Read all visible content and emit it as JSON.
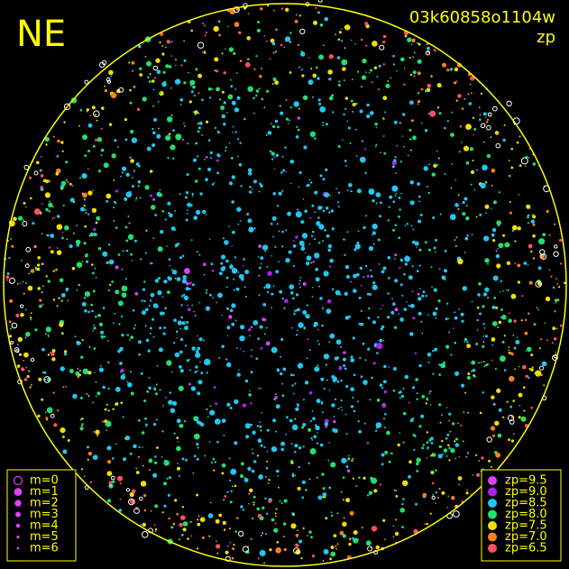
{
  "title": "NE",
  "frame_id": "03k60858o1104w",
  "color_label": "zp",
  "magnitude_legend": [
    {
      "label": "m=0"
    },
    {
      "label": "m=1"
    },
    {
      "label": "m=2"
    },
    {
      "label": "m=3"
    },
    {
      "label": "m=4"
    },
    {
      "label": "m=5"
    },
    {
      "label": "m=6"
    }
  ],
  "zp_legend": [
    {
      "label": "zp=9.5",
      "color": "#e040ff"
    },
    {
      "label": "zp=9.0",
      "color": "#b020f0"
    },
    {
      "label": "zp=8.5",
      "color": "#20c8f0"
    },
    {
      "label": "zp=8.0",
      "color": "#20e070"
    },
    {
      "label": "zp=7.5",
      "color": "#f0e000"
    },
    {
      "label": "zp=7.0",
      "color": "#ff8020"
    },
    {
      "label": "zp=6.5",
      "color": "#ff5060"
    }
  ]
}
